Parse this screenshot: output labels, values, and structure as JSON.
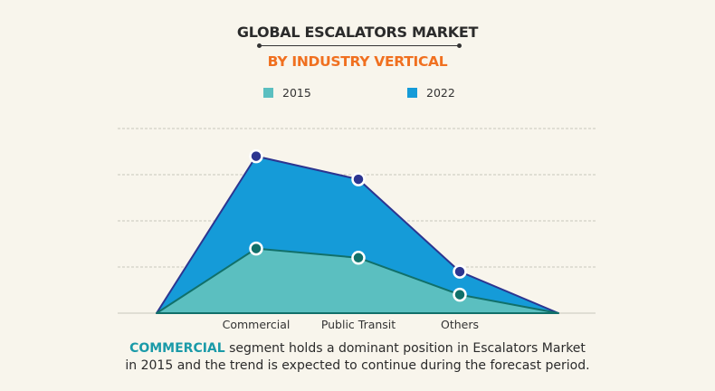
{
  "chart_data": {
    "type": "area",
    "title": "GLOBAL ESCALATORS MARKET",
    "subtitle": "BY INDUSTRY VERTICAL",
    "categories": [
      "",
      "Commercial",
      "Public Transit",
      "Others",
      ""
    ],
    "series": [
      {
        "name": "2015",
        "values": [
          0,
          1.4,
          1.2,
          0.4,
          0
        ],
        "color": "#5bbfc0",
        "line_color": "#11706a"
      },
      {
        "name": "2022",
        "values": [
          0,
          3.4,
          2.9,
          0.9,
          0
        ],
        "color": "#159bd8",
        "line_color": "#2c3590"
      }
    ],
    "ylim": [
      0,
      4
    ],
    "grid": true,
    "y_tick_labels_shown": false,
    "legend_placement": "top"
  },
  "footer": {
    "highlight": "COMMERCIAL",
    "text": " segment holds a dominant position in Escalators Market",
    "line2": "in 2015 and the trend is expected to continue during the forecast period."
  },
  "colors": {
    "background": "#f8f5ec",
    "title": "#2b2b2b",
    "subtitle": "#f07020",
    "highlight": "#1a9aa8"
  }
}
